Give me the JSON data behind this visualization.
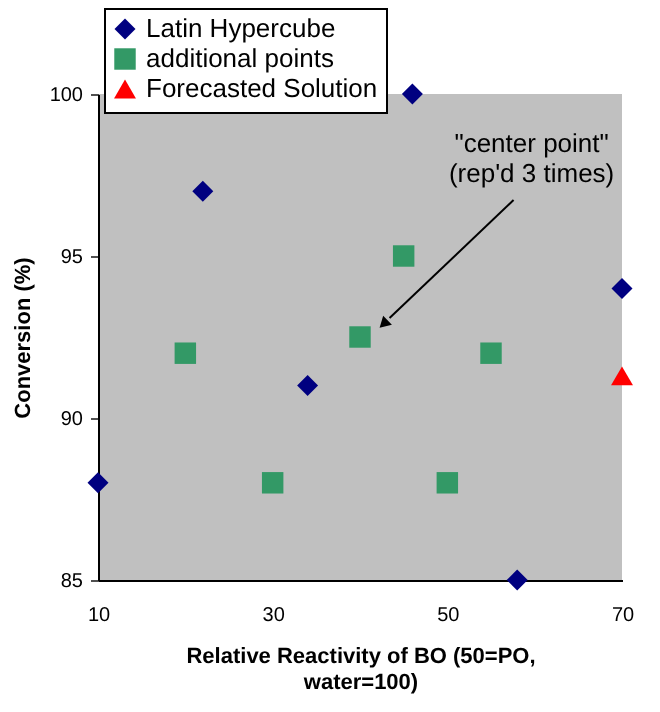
{
  "chart_data": {
    "type": "scatter",
    "xlabel": "Relative Reactivity of BO (50=PO, water=100)",
    "ylabel": "Conversion (%)",
    "xlim": [
      10,
      70
    ],
    "xticks": [
      10,
      30,
      50,
      70
    ],
    "ylim": [
      85,
      100
    ],
    "yticks": [
      85,
      90,
      95,
      100
    ],
    "grid": false,
    "legend": "top left",
    "series": [
      {
        "name": "Latin Hypercube",
        "color": "#000080",
        "marker": "diamond",
        "x": [
          10,
          22,
          46,
          70,
          34,
          58
        ],
        "values": [
          88,
          97,
          100,
          94,
          91,
          85
        ]
      },
      {
        "name": "additional points",
        "color": "#339966",
        "marker": "square",
        "x": [
          20,
          40,
          45,
          55,
          30,
          50
        ],
        "values": [
          92,
          92.5,
          95,
          92,
          88,
          88
        ]
      },
      {
        "name": "Forecasted Solution",
        "color": "#ff0000",
        "marker": "triangle",
        "x": [
          70
        ],
        "values": [
          91.3
        ]
      }
    ],
    "annotations": [
      {
        "text": "\"center point\"\n(rep'd 3 times)",
        "x": 42.7,
        "y": 92.9
      }
    ]
  }
}
